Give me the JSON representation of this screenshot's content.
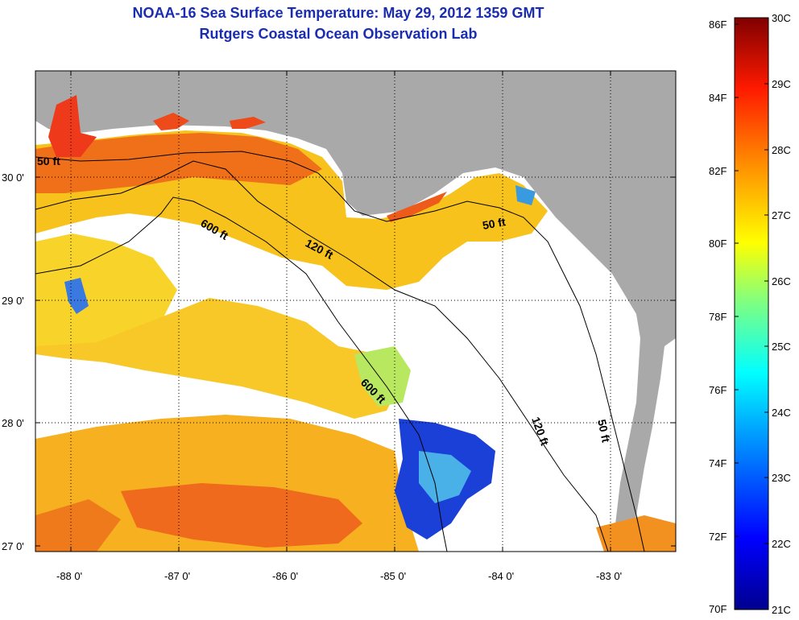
{
  "title": {
    "line1": "NOAA-16 Sea Surface Temperature:  May 29, 2012 1359 GMT",
    "line2": "Rutgers Coastal Ocean Observation Lab"
  },
  "map": {
    "lat_labels": [
      "30 0'",
      "29 0'",
      "28 0'",
      "27 0'"
    ],
    "lon_labels": [
      "-88 0'",
      "-87 0'",
      "-86 0'",
      "-85 0'",
      "-84 0'",
      "-83 0'"
    ],
    "contour_labels": [
      "50 ft",
      "600 ft",
      "120 ft",
      "50 ft",
      "600 ft",
      "120 ft",
      "50 ft"
    ]
  },
  "colorbar": {
    "fahrenheit": [
      "86F",
      "84F",
      "82F",
      "80F",
      "78F",
      "76F",
      "74F",
      "72F",
      "70F"
    ],
    "celsius": [
      "30C",
      "29C",
      "28C",
      "27C",
      "26C",
      "25C",
      "24C",
      "23C",
      "22C",
      "21C"
    ]
  },
  "colors": {
    "land": "#a9a9a9",
    "title": "#1a2db0",
    "warm": "#f5a20c",
    "hot": "#e8401c",
    "cool": "#1030c8"
  }
}
